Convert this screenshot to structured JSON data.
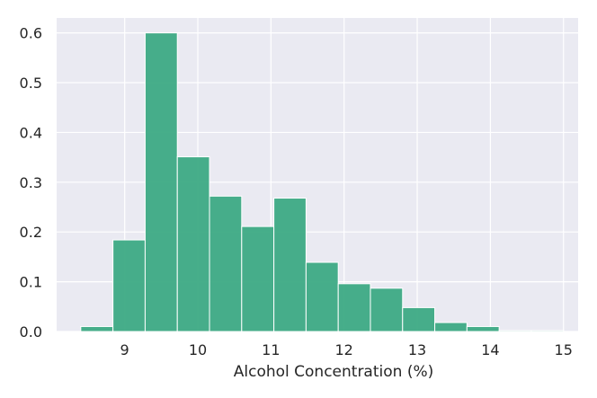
{
  "chart_data": {
    "type": "bar",
    "subtype": "histogram",
    "title": "",
    "xlabel": "Alcohol Concentration (%)",
    "ylabel": "",
    "bin_edges": [
      8.4,
      8.84,
      9.28,
      9.72,
      10.16,
      10.6,
      11.04,
      11.48,
      11.92,
      12.36,
      12.8,
      13.24,
      13.68,
      14.12,
      14.56,
      15.0
    ],
    "values": [
      0.01,
      0.184,
      0.6,
      0.351,
      0.272,
      0.211,
      0.268,
      0.139,
      0.096,
      0.087,
      0.048,
      0.018,
      0.01,
      0.002,
      0.002
    ],
    "xlim": [
      8.07,
      15.2
    ],
    "ylim": [
      0.0,
      0.63
    ],
    "x_ticks": [
      9,
      10,
      11,
      12,
      13,
      14,
      15
    ],
    "x_tick_labels": [
      "9",
      "10",
      "11",
      "12",
      "13",
      "14",
      "15"
    ],
    "y_ticks": [
      0.0,
      0.1,
      0.2,
      0.3,
      0.4,
      0.5,
      0.6
    ],
    "y_tick_labels": [
      "0.0",
      "0.1",
      "0.2",
      "0.3",
      "0.4",
      "0.5",
      "0.6"
    ],
    "grid": true,
    "colors": {
      "bar": "#3daa84",
      "bar_edge": "#ffffff",
      "plot_background": "#eaeaf2",
      "grid": "#ffffff",
      "text": "#262626"
    }
  }
}
